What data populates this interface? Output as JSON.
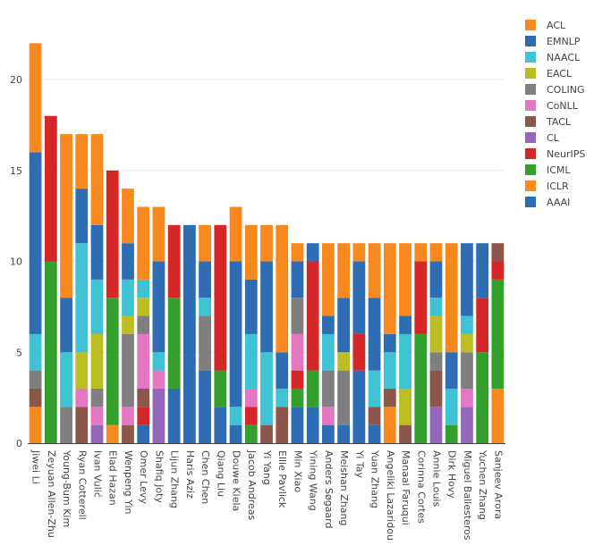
{
  "chart_data": {
    "type": "bar",
    "stacked": true,
    "title": "",
    "xlabel": "",
    "ylabel": "",
    "ylim": [
      0,
      23
    ],
    "yticks": [
      0,
      5,
      10,
      15,
      20
    ],
    "grid": true,
    "legend_position": "top-right",
    "categories": [
      "Jiwei Li",
      "Zeyuan Allen-Zhu",
      "Young-Bum Kim",
      "Ryan Cotterell",
      "Ivan Vulić",
      "Elad Hazan",
      "Wenpeng Yin",
      "Omer Levy",
      "Shafiq Joty",
      "Lijun Zhang",
      "Haris Aziz",
      "Chen Chen",
      "Qiang Liu",
      "Douwe Kiela",
      "Jacob Andreas",
      "Yi Yang",
      "Ellie Pavlick",
      "Min Xiao",
      "Yining Wang",
      "Anders Søgaard",
      "Meishan Zhang",
      "Yi Tay",
      "Yuan Zhang",
      "Angeliki Lazaridou",
      "Manaal Faruqui",
      "Corinna Cortes",
      "Annie Louis",
      "Dirk Hovy",
      "Miguel Ballesteros",
      "Yuchen Zhang",
      "Sanjeev Arora"
    ],
    "series": [
      {
        "name": "AAAI",
        "color": "#2e6db4",
        "values": [
          0,
          0,
          0,
          0,
          0,
          0,
          0,
          1,
          0,
          3,
          12,
          4,
          2,
          1,
          0,
          0,
          0,
          2,
          2,
          1,
          1,
          4,
          1,
          0,
          0,
          0,
          0,
          0,
          0,
          0,
          0
        ]
      },
      {
        "name": "ICLR",
        "color": "#f7891e",
        "values": [
          2,
          0,
          0,
          0,
          0,
          1,
          0,
          0,
          0,
          0,
          0,
          0,
          0,
          0,
          0,
          0,
          0,
          0,
          0,
          0,
          0,
          0,
          0,
          2,
          0,
          0,
          0,
          0,
          0,
          0,
          3
        ]
      },
      {
        "name": "ICML",
        "color": "#33a02c",
        "values": [
          0,
          10,
          0,
          0,
          0,
          7,
          0,
          0,
          0,
          5,
          0,
          0,
          2,
          0,
          1,
          0,
          0,
          1,
          2,
          0,
          0,
          0,
          0,
          0,
          0,
          6,
          0,
          1,
          0,
          5,
          6
        ]
      },
      {
        "name": "NeurIPS",
        "color": "#d62728",
        "values": [
          0,
          8,
          0,
          0,
          0,
          7,
          0,
          1,
          0,
          4,
          0,
          0,
          8,
          0,
          1,
          0,
          0,
          1,
          6,
          0,
          0,
          2,
          0,
          0,
          0,
          4,
          0,
          0,
          0,
          3,
          1
        ]
      },
      {
        "name": "CL",
        "color": "#9467bd",
        "values": [
          0,
          0,
          0,
          0,
          1,
          0,
          0,
          0,
          3,
          0,
          0,
          0,
          0,
          0,
          0,
          0,
          0,
          0,
          0,
          0,
          0,
          0,
          0,
          0,
          0,
          0,
          2,
          0,
          2,
          0,
          0
        ]
      },
      {
        "name": "TACL",
        "color": "#8c564b",
        "values": [
          1,
          0,
          0,
          2,
          0,
          0,
          1,
          1,
          0,
          0,
          0,
          0,
          0,
          0,
          0,
          1,
          2,
          0,
          0,
          0,
          0,
          0,
          1,
          1,
          1,
          0,
          2,
          0,
          0,
          0,
          1
        ]
      },
      {
        "name": "CoNLL",
        "color": "#e377c2",
        "values": [
          0,
          0,
          0,
          1,
          1,
          0,
          1,
          3,
          1,
          0,
          0,
          0,
          0,
          0,
          1,
          0,
          0,
          2,
          0,
          1,
          0,
          0,
          0,
          0,
          0,
          0,
          0,
          0,
          1,
          0,
          0
        ]
      },
      {
        "name": "COLING",
        "color": "#7f7f7f",
        "values": [
          1,
          0,
          2,
          0,
          1,
          0,
          4,
          1,
          0,
          0,
          0,
          3,
          0,
          0,
          0,
          0,
          0,
          2,
          0,
          2,
          3,
          0,
          0,
          0,
          0,
          0,
          1,
          0,
          2,
          0,
          0
        ]
      },
      {
        "name": "EACL",
        "color": "#bcbd22",
        "values": [
          0,
          0,
          0,
          2,
          3,
          0,
          1,
          1,
          0,
          0,
          0,
          0,
          0,
          0,
          0,
          0,
          0,
          0,
          0,
          0,
          1,
          0,
          0,
          0,
          2,
          0,
          2,
          0,
          1,
          0,
          0
        ]
      },
      {
        "name": "NAACL",
        "color": "#3ec2d4",
        "values": [
          2,
          0,
          3,
          6,
          3,
          0,
          2,
          1,
          1,
          0,
          0,
          1,
          0,
          1,
          3,
          4,
          1,
          0,
          0,
          2,
          0,
          0,
          2,
          2,
          3,
          0,
          1,
          2,
          1,
          0,
          0
        ]
      },
      {
        "name": "EMNLP",
        "color": "#2e6db4",
        "values": [
          10,
          0,
          3,
          3,
          3,
          0,
          2,
          0,
          5,
          0,
          0,
          2,
          0,
          8,
          3,
          5,
          2,
          2,
          1,
          1,
          3,
          4,
          4,
          1,
          1,
          0,
          2,
          2,
          4,
          3,
          0
        ]
      },
      {
        "name": "ACL",
        "color": "#f7891e",
        "values": [
          6,
          0,
          9,
          3,
          5,
          0,
          3,
          4,
          3,
          0,
          0,
          2,
          0,
          3,
          3,
          2,
          7,
          1,
          0,
          4,
          3,
          1,
          3,
          5,
          4,
          1,
          1,
          6,
          0,
          0,
          0
        ]
      }
    ]
  }
}
